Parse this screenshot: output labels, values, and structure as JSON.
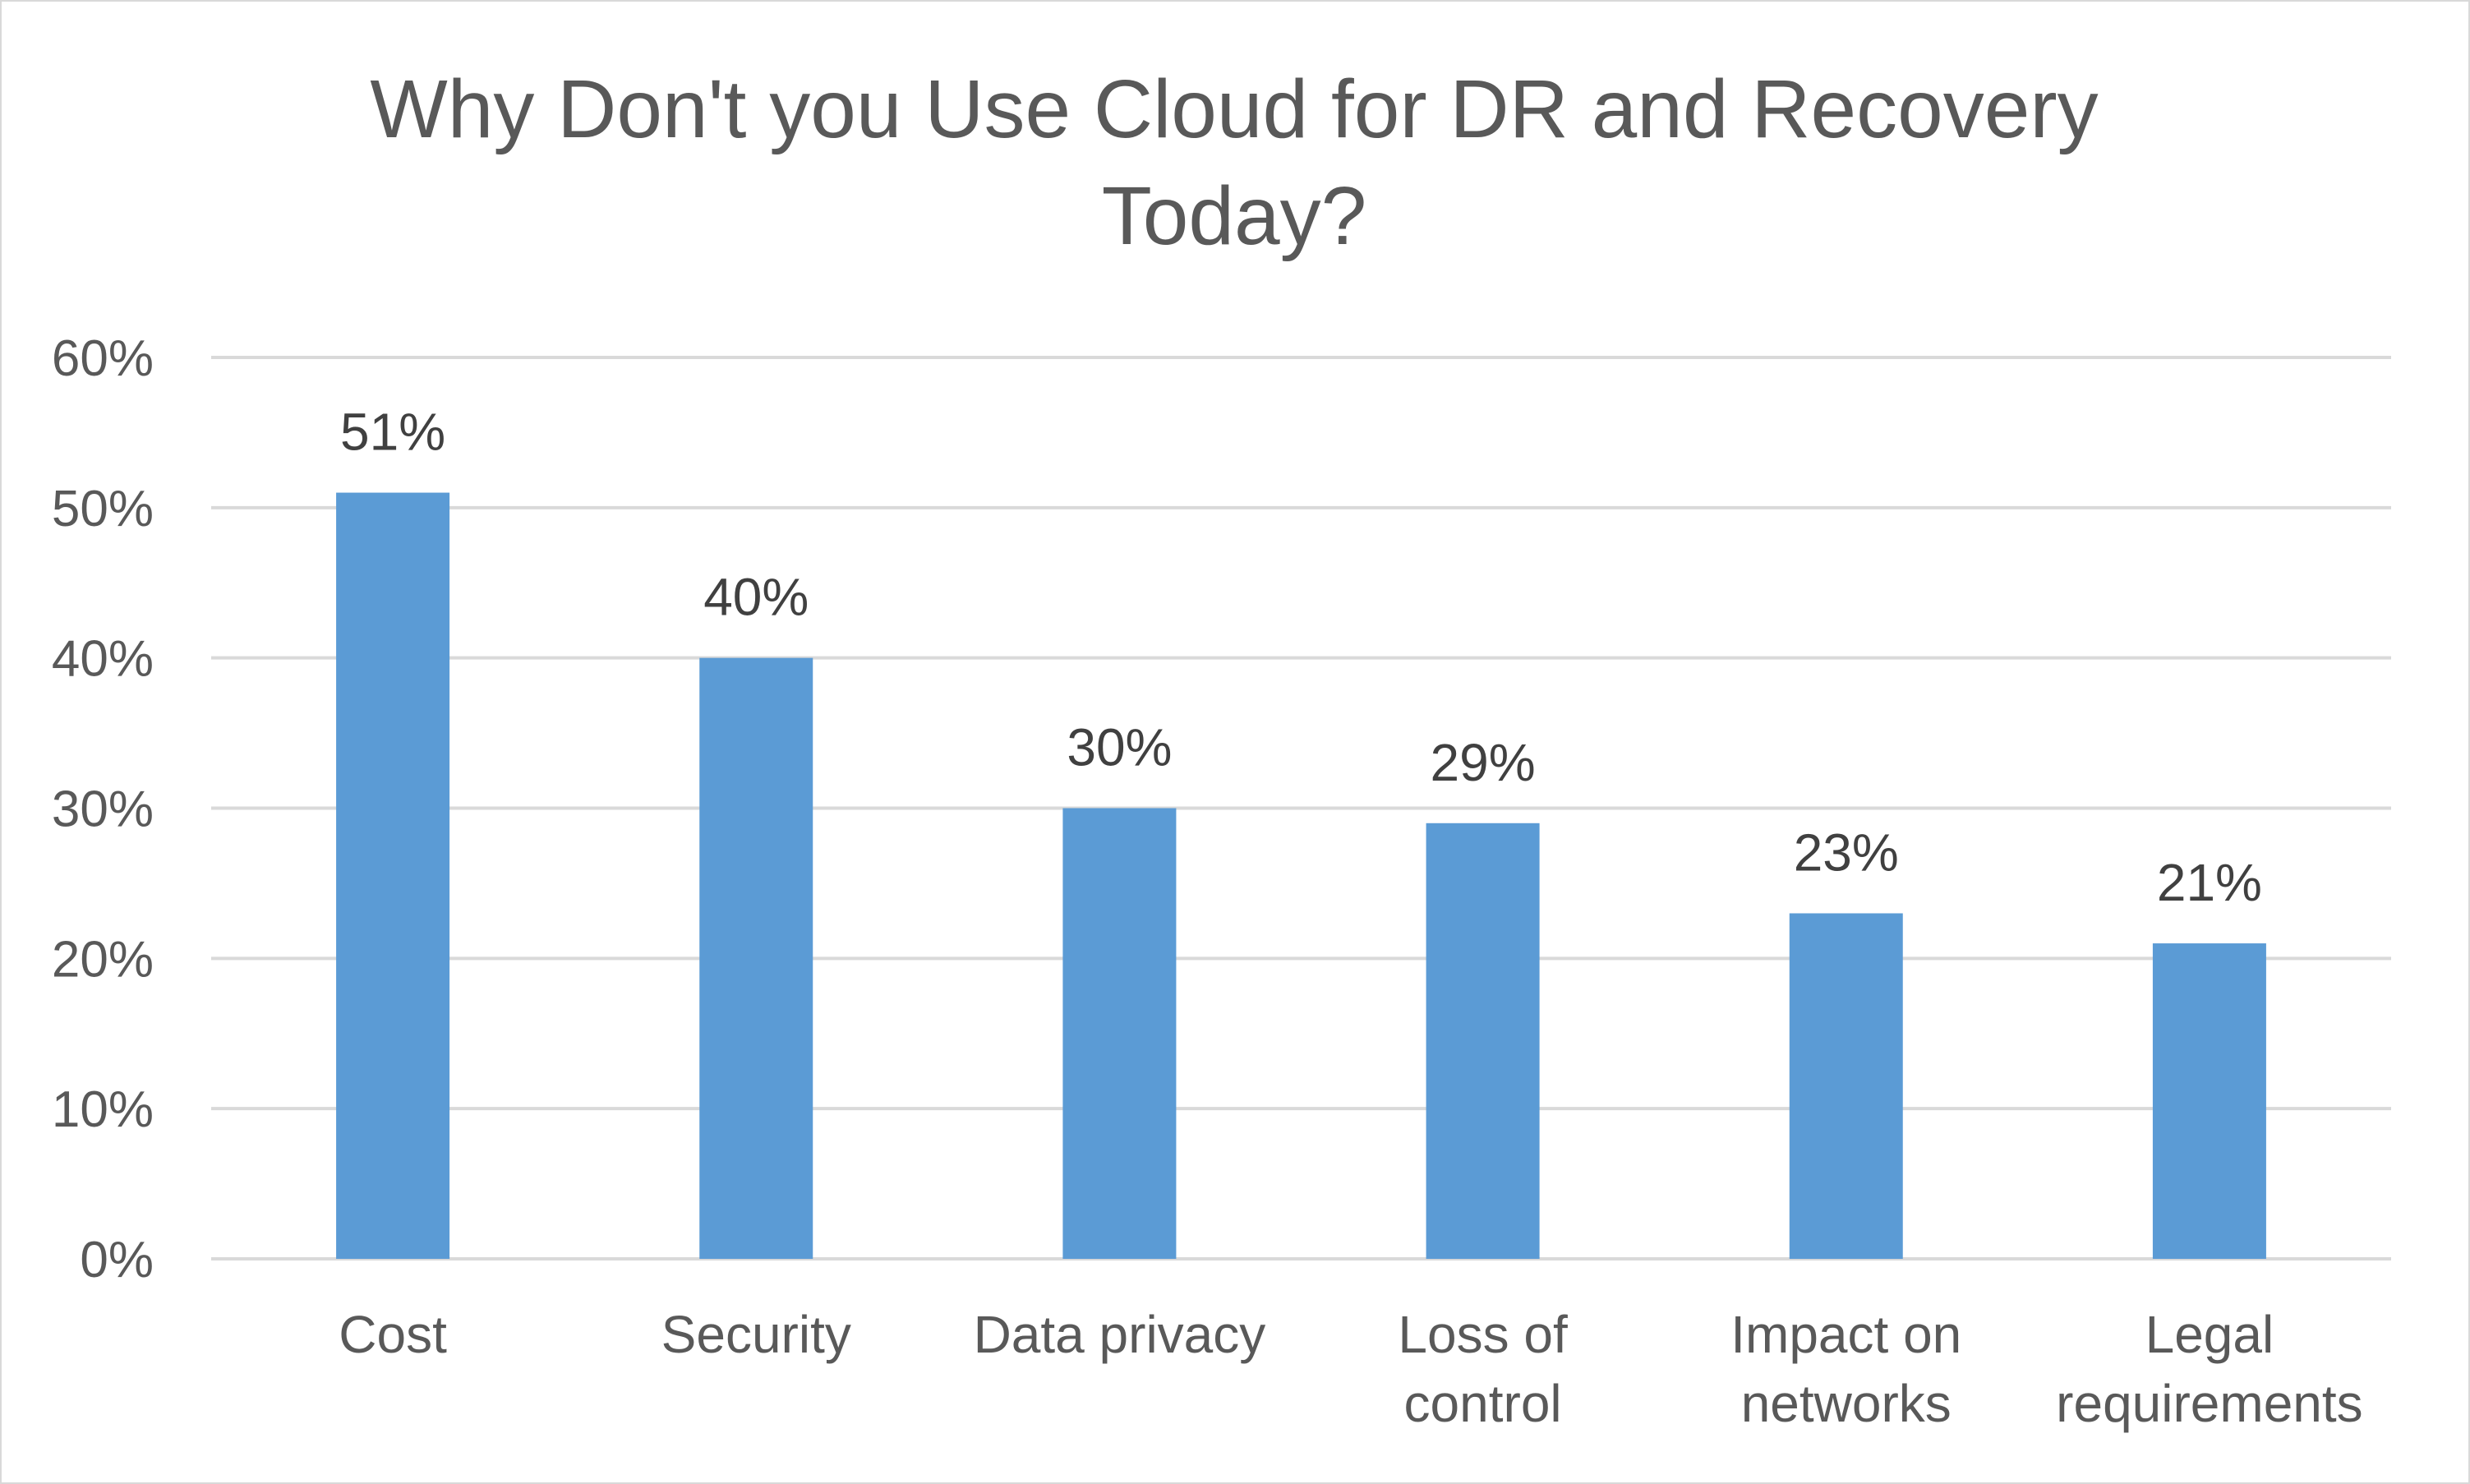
{
  "chart_data": {
    "type": "bar",
    "title_lines": [
      "Why Don't you Use Cloud for DR and Recovery",
      "Today?"
    ],
    "xlabel": "",
    "ylabel": "",
    "categories": [
      [
        "Cost"
      ],
      [
        "Security"
      ],
      [
        "Data privacy"
      ],
      [
        "Loss of",
        "control"
      ],
      [
        "Impact on",
        "networks"
      ],
      [
        "Legal",
        "requirements"
      ]
    ],
    "values": [
      51,
      40,
      30,
      29,
      23,
      21
    ],
    "data_labels": [
      "51%",
      "40%",
      "30%",
      "29%",
      "23%",
      "21%"
    ],
    "y_ticks": [
      "0%",
      "10%",
      "20%",
      "30%",
      "40%",
      "50%",
      "60%"
    ],
    "ylim": [
      0,
      60
    ],
    "grid": true,
    "legend": "none",
    "bar_color": "#5b9bd5",
    "gridline_color": "#d9d9d9"
  }
}
